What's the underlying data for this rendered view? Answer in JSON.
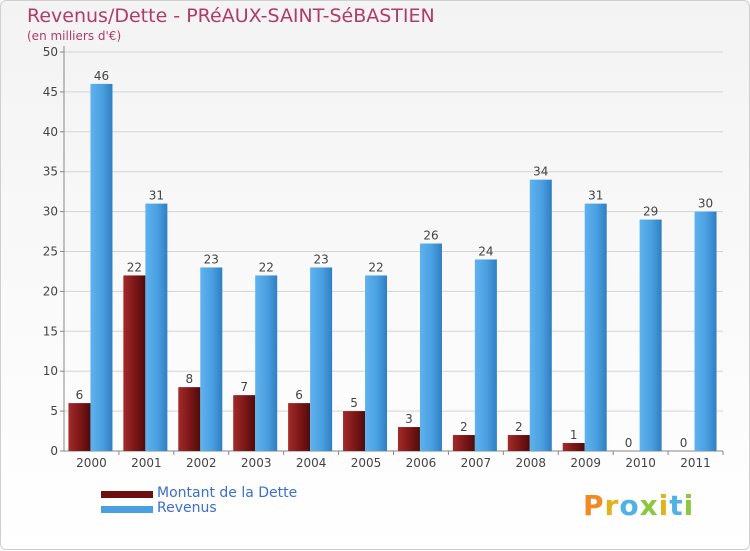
{
  "header": {
    "title": "Revenus/Dette - PRéAUX-SAINT-SéBASTIEN",
    "subtitle": "(en milliers d'€)"
  },
  "logo": {
    "text": "Proxiti",
    "colors": [
      "#f08a24",
      "#e3b21b",
      "#4fb2e3",
      "#8dc63f",
      "#e3b21b",
      "#4fb2e3",
      "#8dc63f"
    ]
  },
  "colors": {
    "dette": "#7a1616",
    "revenus": "#4a9fe0",
    "title": "#b23a6a",
    "legend_text": "#3b6ecf"
  },
  "chart_data": {
    "type": "bar",
    "title": "Revenus/Dette - PRéAUX-SAINT-SéBASTIEN",
    "subtitle": "(en milliers d'€)",
    "xlabel": "",
    "ylabel": "",
    "ylim": [
      0,
      50
    ],
    "yticks": [
      0,
      5,
      10,
      15,
      20,
      25,
      30,
      35,
      40,
      45,
      50
    ],
    "grid": true,
    "legend": "bottom-left",
    "categories": [
      "2000",
      "2001",
      "2002",
      "2003",
      "2004",
      "2005",
      "2006",
      "2007",
      "2008",
      "2009",
      "2010",
      "2011"
    ],
    "series": [
      {
        "name": "Montant de la Dette",
        "color": "#7a1616",
        "values": [
          6,
          22,
          8,
          7,
          6,
          5,
          3,
          2,
          2,
          1,
          0,
          0
        ]
      },
      {
        "name": "Revenus",
        "color": "#4a9fe0",
        "values": [
          46,
          31,
          23,
          22,
          23,
          22,
          26,
          24,
          34,
          31,
          29,
          30
        ]
      }
    ]
  }
}
